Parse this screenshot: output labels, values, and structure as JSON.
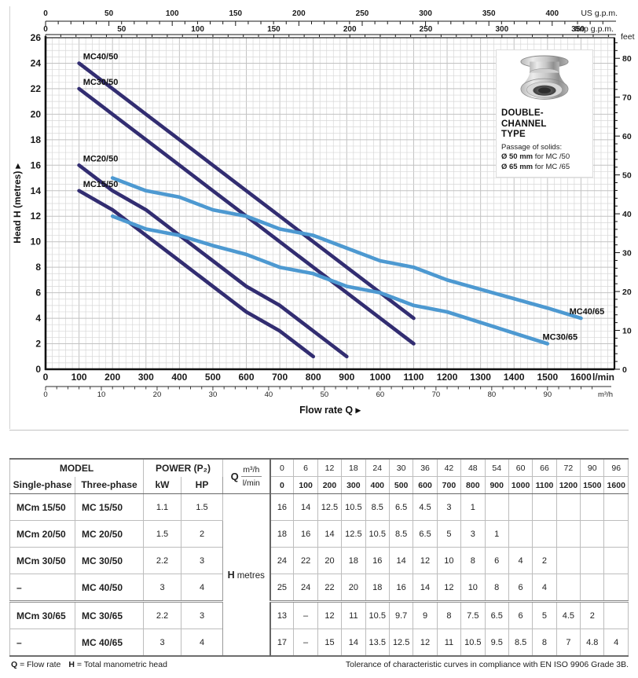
{
  "chart_data": {
    "type": "line",
    "title": "",
    "xlabel": "Flow rate Q",
    "ylabel": "Head H (metres)",
    "x_unit_primary": "l/min",
    "x_unit_secondary": "m³/h",
    "xlim": [
      0,
      1700
    ],
    "ylim": [
      0,
      26
    ],
    "grid": "on",
    "x_ticks_lmin": [
      0,
      100,
      200,
      300,
      400,
      500,
      600,
      700,
      800,
      900,
      1000,
      1100,
      1200,
      1300,
      1400,
      1500,
      1600
    ],
    "x_ticks_m3h": [
      0,
      10,
      20,
      30,
      40,
      50,
      60,
      70,
      80,
      90
    ],
    "y_ticks_m": [
      0,
      2,
      4,
      6,
      8,
      10,
      12,
      14,
      16,
      18,
      20,
      22,
      24,
      26
    ],
    "right_axis": {
      "unit": "feet",
      "ticks": [
        0,
        10,
        20,
        30,
        40,
        50,
        60,
        70,
        80
      ]
    },
    "top_axis_us_gpm": {
      "unit": "US g.p.m.",
      "ticks": [
        0,
        50,
        100,
        150,
        200,
        250,
        300,
        350,
        400
      ]
    },
    "top_axis_imp_gpm": {
      "unit": "Imp g.p.m.",
      "ticks": [
        0,
        50,
        100,
        150,
        200,
        250,
        300,
        350
      ]
    },
    "series": [
      {
        "name": "MC40/50",
        "color": "#322d71",
        "x": [
          100,
          200,
          300,
          400,
          500,
          600,
          700,
          800,
          900,
          1000,
          1100
        ],
        "y": [
          24,
          22,
          20,
          18,
          16,
          14,
          12,
          10,
          8,
          6,
          4
        ],
        "label": {
          "x": 112,
          "y": 24,
          "anchor": "start"
        }
      },
      {
        "name": "MC30/50",
        "color": "#322d71",
        "x": [
          100,
          200,
          300,
          400,
          500,
          600,
          700,
          800,
          900,
          1000,
          1100
        ],
        "y": [
          22,
          20,
          18,
          16,
          14,
          12,
          10,
          8,
          6,
          4,
          2
        ],
        "label": {
          "x": 112,
          "y": 22,
          "anchor": "start"
        }
      },
      {
        "name": "MC20/50",
        "color": "#322d71",
        "x": [
          100,
          200,
          300,
          400,
          500,
          600,
          700,
          800,
          900
        ],
        "y": [
          16,
          14,
          12.5,
          10.5,
          8.5,
          6.5,
          5,
          3,
          1
        ],
        "label": {
          "x": 112,
          "y": 16,
          "anchor": "start"
        }
      },
      {
        "name": "MC15/50",
        "color": "#322d71",
        "x": [
          100,
          200,
          300,
          400,
          500,
          600,
          700,
          800
        ],
        "y": [
          14,
          12.5,
          10.5,
          8.5,
          6.5,
          4.5,
          3,
          1
        ],
        "label": {
          "x": 112,
          "y": 14,
          "anchor": "start"
        }
      },
      {
        "name": "MC40/65",
        "color": "#4d99d1",
        "x": [
          200,
          300,
          400,
          500,
          600,
          700,
          800,
          900,
          1000,
          1100,
          1200,
          1500,
          1600
        ],
        "y": [
          15,
          14,
          13.5,
          12.5,
          12,
          11,
          10.5,
          9.5,
          8.5,
          8,
          7,
          4.8,
          4
        ],
        "label": {
          "x": 1670,
          "y": 4,
          "anchor": "end"
        }
      },
      {
        "name": "MC30/65",
        "color": "#4d99d1",
        "x": [
          200,
          300,
          400,
          500,
          600,
          700,
          800,
          900,
          1000,
          1100,
          1200,
          1500
        ],
        "y": [
          12,
          11,
          10.5,
          9.7,
          9,
          8,
          7.5,
          6.5,
          6,
          5,
          4.5,
          2
        ],
        "label": {
          "x": 1590,
          "y": 2,
          "anchor": "end"
        }
      }
    ]
  },
  "inset": {
    "title_line1": "DOUBLE-CHANNEL",
    "title_line2": "TYPE",
    "subtitle": "Passage of solids:",
    "solid1_bold": "Ø 50 mm",
    "solid1_rest": " for MC /50",
    "solid2_bold": "Ø 65 mm",
    "solid2_rest": " for MC /65"
  },
  "table": {
    "header": {
      "model": "MODEL",
      "single_phase": "Single-phase",
      "three_phase": "Three-phase",
      "power": "POWER (P₂)",
      "kw": "kW",
      "hp": "HP",
      "q": "Q",
      "m3h": "m³/h",
      "lmin": "l/min",
      "h": "H",
      "metres": "metres",
      "m3h_values": [
        "0",
        "6",
        "12",
        "18",
        "24",
        "30",
        "36",
        "42",
        "48",
        "54",
        "60",
        "66",
        "72",
        "90",
        "96"
      ],
      "lmin_values": [
        "0",
        "100",
        "200",
        "300",
        "400",
        "500",
        "600",
        "700",
        "800",
        "900",
        "1000",
        "1100",
        "1200",
        "1500",
        "1600"
      ]
    },
    "rows": [
      {
        "single": "MCm 15/50",
        "three": "MC 15/50",
        "kw": "1.1",
        "hp": "1.5",
        "h": [
          "16",
          "14",
          "12.5",
          "10.5",
          "8.5",
          "6.5",
          "4.5",
          "3",
          "1",
          "",
          "",
          "",
          "",
          "",
          ""
        ]
      },
      {
        "single": "MCm 20/50",
        "three": "MC 20/50",
        "kw": "1.5",
        "hp": "2",
        "h": [
          "18",
          "16",
          "14",
          "12.5",
          "10.5",
          "8.5",
          "6.5",
          "5",
          "3",
          "1",
          "",
          "",
          "",
          "",
          ""
        ]
      },
      {
        "single": "MCm 30/50",
        "three": "MC 30/50",
        "kw": "2.2",
        "hp": "3",
        "h": [
          "24",
          "22",
          "20",
          "18",
          "16",
          "14",
          "12",
          "10",
          "8",
          "6",
          "4",
          "2",
          "",
          "",
          ""
        ]
      },
      {
        "single": "–",
        "three": "MC 40/50",
        "kw": "3",
        "hp": "4",
        "h": [
          "25",
          "24",
          "22",
          "20",
          "18",
          "16",
          "14",
          "12",
          "10",
          "8",
          "6",
          "4",
          "",
          "",
          ""
        ]
      },
      {
        "single": "MCm 30/65",
        "three": "MC 30/65",
        "kw": "2.2",
        "hp": "3",
        "group_start": true,
        "h": [
          "13",
          "–",
          "12",
          "11",
          "10.5",
          "9.7",
          "9",
          "8",
          "7.5",
          "6.5",
          "6",
          "5",
          "4.5",
          "2",
          ""
        ]
      },
      {
        "single": "–",
        "three": "MC 40/65",
        "kw": "3",
        "hp": "4",
        "h": [
          "17",
          "–",
          "15",
          "14",
          "13.5",
          "12.5",
          "12",
          "11",
          "10.5",
          "9.5",
          "8.5",
          "8",
          "7",
          "4.8",
          "4"
        ]
      }
    ]
  },
  "footnotes": {
    "q_sym": "Q",
    "q_def": "= Flow rate",
    "h_sym": "H",
    "h_def": "= Total manometric head",
    "right": "Tolerance of characteristic curves in compliance with EN ISO 9906 Grade 3B."
  }
}
